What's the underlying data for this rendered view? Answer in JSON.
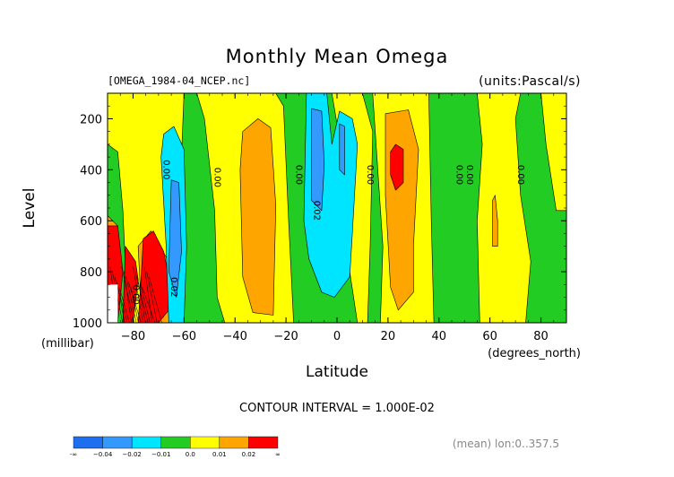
{
  "chart_data": {
    "type": "contour",
    "title": "Monthly Mean Omega",
    "file_label": "[OMEGA_1984-04_NCEP.nc]",
    "units_label": "(units:Pascal/s)",
    "xlabel": "Latitude",
    "x_units": "(degrees_north)",
    "ylabel": "Level",
    "y_units": "(millibar)",
    "xlim": [
      -90,
      90
    ],
    "ylim": [
      1000,
      100
    ],
    "x_ticks": [
      -80,
      -60,
      -40,
      -20,
      0,
      20,
      40,
      60,
      80
    ],
    "x_tick_labels": [
      "−80",
      "−60",
      "−40",
      "−20",
      "0",
      "20",
      "40",
      "60",
      "80"
    ],
    "y_ticks": [
      200,
      400,
      600,
      800,
      1000
    ],
    "y_tick_labels": [
      "200",
      "400",
      "600",
      "800",
      "1000"
    ],
    "contour_interval_text": "CONTOUR INTERVAL = 1.000E-02",
    "footer_text": "(mean) lon:0..357.5",
    "legend": {
      "colors": [
        "#1e6ef0",
        "#3399ff",
        "#00e5ff",
        "#22cc22",
        "#ffff00",
        "#ffa500",
        "#ff0000"
      ],
      "labels": [
        "-∞",
        "−0.04",
        "−0.02",
        "−0.01",
        "0.0",
        "0.01",
        "0.02",
        "∞"
      ]
    },
    "contour_labels": [
      {
        "text": "0.00",
        "lat": -68,
        "lev": 400
      },
      {
        "text": "0.00",
        "lat": -48,
        "lev": 430
      },
      {
        "text": "0.00",
        "lat": -16,
        "lev": 420
      },
      {
        "text": "0.02",
        "lat": -9,
        "lev": 560
      },
      {
        "text": "0.00",
        "lat": 12,
        "lev": 420
      },
      {
        "text": "0.00",
        "lat": 47,
        "lev": 420
      },
      {
        "text": "0.00",
        "lat": 51,
        "lev": 420
      },
      {
        "text": "0.00",
        "lat": 71,
        "lev": 420
      },
      {
        "text": "0.02",
        "lat": -65,
        "lev": 860
      },
      {
        "text": "0.00",
        "lat": -80,
        "lev": 890
      }
    ],
    "regions": [
      {
        "color": "#ffff00",
        "points": [
          [
            -90,
            100
          ],
          [
            -90,
            300
          ],
          [
            -86,
            330
          ],
          [
            -84,
            560
          ],
          [
            -82,
            1000
          ],
          [
            -64,
            1000
          ],
          [
            -62,
            600
          ],
          [
            -60,
            100
          ]
        ]
      },
      {
        "color": "#ffff00",
        "points": [
          [
            -55,
            100
          ],
          [
            -52,
            200
          ],
          [
            -48,
            560
          ],
          [
            -47,
            900
          ],
          [
            -44,
            1000
          ],
          [
            -17,
            1000
          ],
          [
            -19,
            600
          ],
          [
            -21,
            150
          ],
          [
            -24,
            100
          ]
        ]
      },
      {
        "color": "#ffff00",
        "points": [
          [
            -2,
            100
          ],
          [
            3,
            400
          ],
          [
            5,
            800
          ],
          [
            8,
            1000
          ],
          [
            12,
            1000
          ],
          [
            13,
            700
          ],
          [
            14,
            250
          ],
          [
            10,
            100
          ]
        ]
      },
      {
        "color": "#ffff00",
        "points": [
          [
            14,
            100
          ],
          [
            18,
            700
          ],
          [
            17,
            1000
          ],
          [
            38,
            1000
          ],
          [
            37,
            600
          ],
          [
            36,
            100
          ]
        ]
      },
      {
        "color": "#ffff00",
        "points": [
          [
            55,
            100
          ],
          [
            57,
            300
          ],
          [
            55,
            600
          ],
          [
            56,
            1000
          ],
          [
            74,
            1000
          ],
          [
            76,
            760
          ],
          [
            72,
            500
          ],
          [
            70,
            200
          ],
          [
            72,
            100
          ]
        ]
      },
      {
        "color": "#ffff00",
        "points": [
          [
            80,
            100
          ],
          [
            82,
            300
          ],
          [
            86,
            560
          ],
          [
            90,
            560
          ],
          [
            90,
            100
          ]
        ]
      },
      {
        "color": "#ffa500",
        "points": [
          [
            -37,
            250
          ],
          [
            -31,
            200
          ],
          [
            -26,
            235
          ],
          [
            -24,
            540
          ],
          [
            -25,
            970
          ],
          [
            -33,
            960
          ],
          [
            -37,
            820
          ],
          [
            -38,
            400
          ]
        ]
      },
      {
        "color": "#ffa500",
        "points": [
          [
            19,
            180
          ],
          [
            28,
            165
          ],
          [
            32,
            320
          ],
          [
            30,
            700
          ],
          [
            30,
            880
          ],
          [
            24,
            950
          ],
          [
            21,
            860
          ],
          [
            19,
            500
          ]
        ]
      },
      {
        "color": "#ffa500",
        "points": [
          [
            -90,
            580
          ],
          [
            -86,
            620
          ],
          [
            -86,
            1000
          ],
          [
            -90,
            1000
          ]
        ]
      },
      {
        "color": "#ffa500",
        "points": [
          [
            -78,
            700
          ],
          [
            -73,
            640
          ],
          [
            -66,
            760
          ],
          [
            -64,
            1000
          ],
          [
            -74,
            1000
          ],
          [
            -77,
            900
          ]
        ]
      },
      {
        "color": "#ff0000",
        "points": [
          [
            23,
            300
          ],
          [
            26,
            320
          ],
          [
            26,
            450
          ],
          [
            23,
            480
          ],
          [
            21,
            420
          ],
          [
            21,
            330
          ]
        ]
      },
      {
        "color": "#ff0000",
        "points": [
          [
            -90,
            620
          ],
          [
            -86,
            620
          ],
          [
            -84,
            800
          ],
          [
            -86,
            1000
          ],
          [
            -90,
            1000
          ]
        ]
      },
      {
        "color": "#ff0000",
        "points": [
          [
            -83,
            700
          ],
          [
            -79,
            760
          ],
          [
            -78,
            830
          ],
          [
            -80,
            1000
          ],
          [
            -84,
            1000
          ]
        ]
      },
      {
        "color": "#ff0000",
        "points": [
          [
            -76,
            670
          ],
          [
            -72,
            640
          ],
          [
            -68,
            720
          ],
          [
            -66,
            820
          ],
          [
            -66,
            950
          ],
          [
            -70,
            1000
          ],
          [
            -78,
            1000
          ],
          [
            -77,
            850
          ]
        ]
      },
      {
        "color": "#00e5ff",
        "points": [
          [
            -68,
            260
          ],
          [
            -64,
            230
          ],
          [
            -60,
            320
          ],
          [
            -59,
            700
          ],
          [
            -60,
            1000
          ],
          [
            -66,
            1000
          ],
          [
            -67,
            700
          ],
          [
            -69,
            350
          ]
        ]
      },
      {
        "color": "#00e5ff",
        "points": [
          [
            -12,
            100
          ],
          [
            -4,
            100
          ],
          [
            -2,
            300
          ],
          [
            1,
            170
          ],
          [
            6,
            200
          ],
          [
            8,
            300
          ],
          [
            6,
            650
          ],
          [
            5,
            820
          ],
          [
            -1,
            900
          ],
          [
            -6,
            880
          ],
          [
            -11,
            750
          ],
          [
            -13,
            600
          ]
        ]
      },
      {
        "color": "#3399ff",
        "points": [
          [
            -65,
            440
          ],
          [
            -62,
            450
          ],
          [
            -61,
            720
          ],
          [
            -63,
            900
          ],
          [
            -66,
            800
          ]
        ]
      },
      {
        "color": "#3399ff",
        "points": [
          [
            -10,
            160
          ],
          [
            -6,
            170
          ],
          [
            -5,
            380
          ],
          [
            -6,
            560
          ],
          [
            -10,
            520
          ]
        ]
      },
      {
        "color": "#3399ff",
        "points": [
          [
            1,
            220
          ],
          [
            3,
            230
          ],
          [
            3,
            420
          ],
          [
            1,
            400
          ]
        ]
      },
      {
        "color": "#ffa500",
        "points": [
          [
            61,
            520
          ],
          [
            62,
            500
          ],
          [
            63,
            600
          ],
          [
            63,
            700
          ],
          [
            61,
            700
          ]
        ]
      }
    ]
  }
}
